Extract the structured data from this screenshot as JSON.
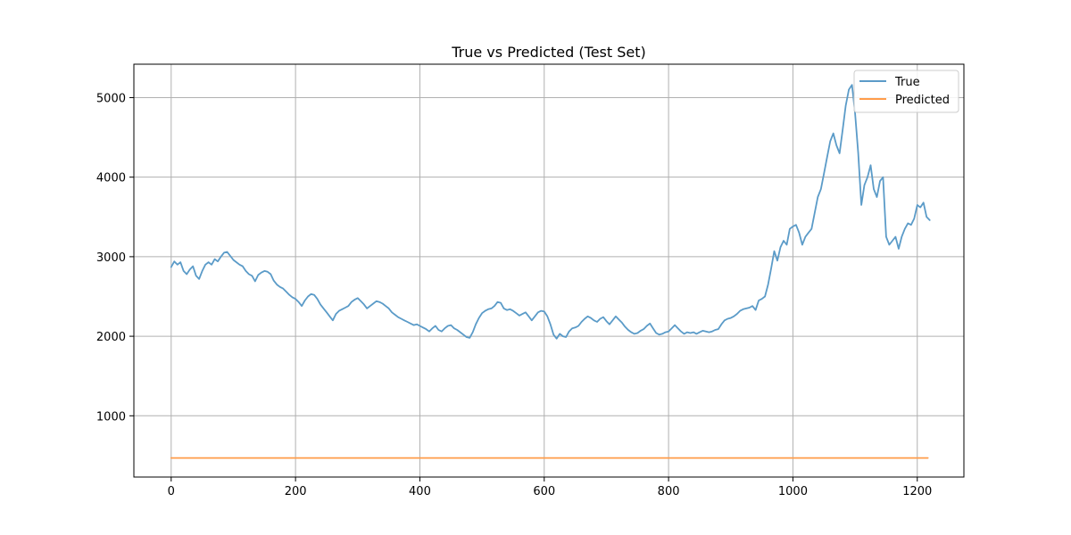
{
  "chart_data": {
    "type": "line",
    "title": "True vs Predicted (Test Set)",
    "xlabel": "",
    "ylabel": "",
    "xlim": [
      -60,
      1275
    ],
    "ylim": [
      230,
      5420
    ],
    "x_ticks": [
      0,
      200,
      400,
      600,
      800,
      1000,
      1200
    ],
    "y_ticks": [
      1000,
      2000,
      3000,
      4000,
      5000
    ],
    "grid": true,
    "legend_position": "top-right",
    "series": [
      {
        "name": "True",
        "color": "#5b9bc8",
        "points": [
          [
            0,
            2870
          ],
          [
            5,
            2940
          ],
          [
            10,
            2900
          ],
          [
            15,
            2930
          ],
          [
            20,
            2820
          ],
          [
            25,
            2780
          ],
          [
            30,
            2840
          ],
          [
            35,
            2880
          ],
          [
            40,
            2760
          ],
          [
            45,
            2720
          ],
          [
            50,
            2820
          ],
          [
            55,
            2900
          ],
          [
            60,
            2930
          ],
          [
            65,
            2900
          ],
          [
            70,
            2970
          ],
          [
            75,
            2940
          ],
          [
            80,
            3000
          ],
          [
            85,
            3050
          ],
          [
            90,
            3060
          ],
          [
            95,
            3010
          ],
          [
            100,
            2960
          ],
          [
            105,
            2930
          ],
          [
            110,
            2900
          ],
          [
            115,
            2880
          ],
          [
            120,
            2820
          ],
          [
            125,
            2780
          ],
          [
            130,
            2760
          ],
          [
            135,
            2690
          ],
          [
            140,
            2770
          ],
          [
            145,
            2800
          ],
          [
            150,
            2820
          ],
          [
            155,
            2810
          ],
          [
            160,
            2780
          ],
          [
            165,
            2700
          ],
          [
            170,
            2650
          ],
          [
            175,
            2620
          ],
          [
            180,
            2600
          ],
          [
            185,
            2560
          ],
          [
            190,
            2520
          ],
          [
            195,
            2490
          ],
          [
            200,
            2470
          ],
          [
            205,
            2430
          ],
          [
            210,
            2380
          ],
          [
            215,
            2450
          ],
          [
            220,
            2500
          ],
          [
            225,
            2530
          ],
          [
            230,
            2520
          ],
          [
            235,
            2470
          ],
          [
            240,
            2400
          ],
          [
            245,
            2350
          ],
          [
            250,
            2300
          ],
          [
            255,
            2250
          ],
          [
            260,
            2200
          ],
          [
            265,
            2280
          ],
          [
            270,
            2320
          ],
          [
            275,
            2340
          ],
          [
            280,
            2360
          ],
          [
            285,
            2380
          ],
          [
            290,
            2430
          ],
          [
            295,
            2460
          ],
          [
            300,
            2480
          ],
          [
            305,
            2440
          ],
          [
            310,
            2400
          ],
          [
            315,
            2350
          ],
          [
            320,
            2380
          ],
          [
            325,
            2410
          ],
          [
            330,
            2440
          ],
          [
            335,
            2430
          ],
          [
            340,
            2410
          ],
          [
            345,
            2380
          ],
          [
            350,
            2350
          ],
          [
            355,
            2300
          ],
          [
            360,
            2270
          ],
          [
            365,
            2240
          ],
          [
            370,
            2220
          ],
          [
            375,
            2200
          ],
          [
            380,
            2180
          ],
          [
            385,
            2160
          ],
          [
            390,
            2140
          ],
          [
            395,
            2150
          ],
          [
            400,
            2130
          ],
          [
            405,
            2110
          ],
          [
            410,
            2090
          ],
          [
            415,
            2060
          ],
          [
            420,
            2100
          ],
          [
            425,
            2130
          ],
          [
            430,
            2080
          ],
          [
            435,
            2060
          ],
          [
            440,
            2100
          ],
          [
            445,
            2130
          ],
          [
            450,
            2140
          ],
          [
            455,
            2100
          ],
          [
            460,
            2080
          ],
          [
            465,
            2050
          ],
          [
            470,
            2020
          ],
          [
            475,
            1990
          ],
          [
            480,
            1980
          ],
          [
            485,
            2050
          ],
          [
            490,
            2150
          ],
          [
            495,
            2230
          ],
          [
            500,
            2290
          ],
          [
            505,
            2320
          ],
          [
            510,
            2340
          ],
          [
            515,
            2350
          ],
          [
            520,
            2380
          ],
          [
            525,
            2430
          ],
          [
            530,
            2420
          ],
          [
            535,
            2350
          ],
          [
            540,
            2330
          ],
          [
            545,
            2340
          ],
          [
            550,
            2320
          ],
          [
            555,
            2290
          ],
          [
            560,
            2260
          ],
          [
            565,
            2280
          ],
          [
            570,
            2300
          ],
          [
            575,
            2250
          ],
          [
            580,
            2200
          ],
          [
            585,
            2250
          ],
          [
            590,
            2300
          ],
          [
            595,
            2320
          ],
          [
            600,
            2310
          ],
          [
            605,
            2250
          ],
          [
            610,
            2150
          ],
          [
            615,
            2020
          ],
          [
            620,
            1970
          ],
          [
            625,
            2030
          ],
          [
            630,
            2000
          ],
          [
            635,
            1990
          ],
          [
            640,
            2060
          ],
          [
            645,
            2100
          ],
          [
            650,
            2110
          ],
          [
            655,
            2130
          ],
          [
            660,
            2180
          ],
          [
            665,
            2220
          ],
          [
            670,
            2250
          ],
          [
            675,
            2230
          ],
          [
            680,
            2200
          ],
          [
            685,
            2180
          ],
          [
            690,
            2220
          ],
          [
            695,
            2240
          ],
          [
            700,
            2190
          ],
          [
            705,
            2150
          ],
          [
            710,
            2200
          ],
          [
            715,
            2250
          ],
          [
            720,
            2210
          ],
          [
            725,
            2170
          ],
          [
            730,
            2120
          ],
          [
            735,
            2080
          ],
          [
            740,
            2050
          ],
          [
            745,
            2030
          ],
          [
            750,
            2040
          ],
          [
            755,
            2070
          ],
          [
            760,
            2090
          ],
          [
            765,
            2130
          ],
          [
            770,
            2160
          ],
          [
            775,
            2100
          ],
          [
            780,
            2040
          ],
          [
            785,
            2020
          ],
          [
            790,
            2030
          ],
          [
            795,
            2050
          ],
          [
            800,
            2060
          ],
          [
            805,
            2100
          ],
          [
            810,
            2140
          ],
          [
            815,
            2100
          ],
          [
            820,
            2060
          ],
          [
            825,
            2030
          ],
          [
            830,
            2050
          ],
          [
            835,
            2040
          ],
          [
            840,
            2050
          ],
          [
            845,
            2030
          ],
          [
            850,
            2050
          ],
          [
            855,
            2070
          ],
          [
            860,
            2060
          ],
          [
            865,
            2050
          ],
          [
            870,
            2060
          ],
          [
            875,
            2080
          ],
          [
            880,
            2090
          ],
          [
            885,
            2150
          ],
          [
            890,
            2200
          ],
          [
            895,
            2220
          ],
          [
            900,
            2230
          ],
          [
            905,
            2250
          ],
          [
            910,
            2280
          ],
          [
            915,
            2320
          ],
          [
            920,
            2340
          ],
          [
            925,
            2350
          ],
          [
            930,
            2360
          ],
          [
            935,
            2380
          ],
          [
            940,
            2330
          ],
          [
            945,
            2450
          ],
          [
            950,
            2470
          ],
          [
            955,
            2500
          ],
          [
            960,
            2650
          ],
          [
            965,
            2850
          ],
          [
            970,
            3070
          ],
          [
            975,
            2950
          ],
          [
            980,
            3120
          ],
          [
            985,
            3200
          ],
          [
            990,
            3150
          ],
          [
            995,
            3350
          ],
          [
            1000,
            3380
          ],
          [
            1005,
            3400
          ],
          [
            1010,
            3300
          ],
          [
            1015,
            3150
          ],
          [
            1020,
            3250
          ],
          [
            1025,
            3300
          ],
          [
            1030,
            3350
          ],
          [
            1035,
            3550
          ],
          [
            1040,
            3750
          ],
          [
            1045,
            3850
          ],
          [
            1050,
            4050
          ],
          [
            1055,
            4250
          ],
          [
            1060,
            4450
          ],
          [
            1065,
            4550
          ],
          [
            1070,
            4400
          ],
          [
            1075,
            4300
          ],
          [
            1080,
            4600
          ],
          [
            1085,
            4900
          ],
          [
            1090,
            5100
          ],
          [
            1095,
            5160
          ],
          [
            1100,
            4800
          ],
          [
            1105,
            4300
          ],
          [
            1110,
            3650
          ],
          [
            1115,
            3900
          ],
          [
            1120,
            4000
          ],
          [
            1125,
            4150
          ],
          [
            1130,
            3850
          ],
          [
            1135,
            3750
          ],
          [
            1140,
            3950
          ],
          [
            1145,
            4000
          ],
          [
            1150,
            3250
          ],
          [
            1155,
            3150
          ],
          [
            1160,
            3200
          ],
          [
            1165,
            3250
          ],
          [
            1170,
            3100
          ],
          [
            1175,
            3250
          ],
          [
            1180,
            3350
          ],
          [
            1185,
            3420
          ],
          [
            1190,
            3400
          ],
          [
            1195,
            3480
          ],
          [
            1200,
            3650
          ],
          [
            1205,
            3620
          ],
          [
            1210,
            3680
          ],
          [
            1215,
            3500
          ],
          [
            1220,
            3460
          ]
        ]
      },
      {
        "name": "Predicted",
        "color": "#ff9c4a",
        "points": [
          [
            0,
            470
          ],
          [
            1217,
            470
          ]
        ]
      }
    ]
  }
}
